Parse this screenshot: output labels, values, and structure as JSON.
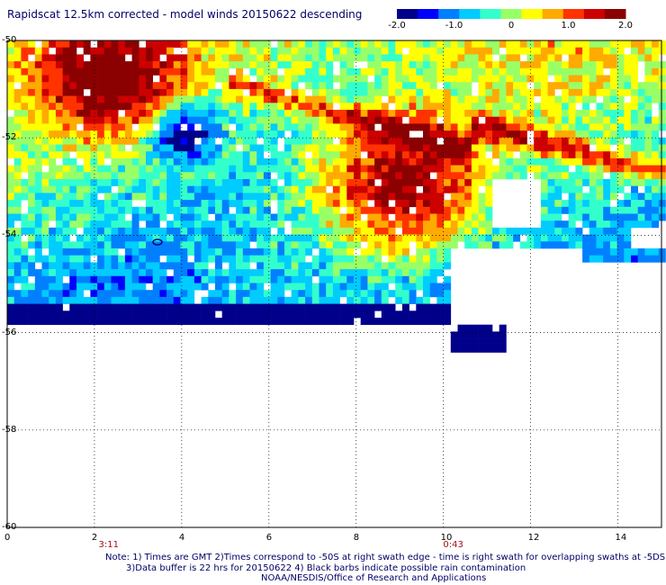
{
  "title": "Rapidscat 12.5km corrected - model winds 20150622 descending",
  "colorbar": {
    "ticks": [
      "-2.0",
      "-1.0",
      "0",
      "1.0",
      "2.0"
    ],
    "tick_values": [
      -2,
      -1,
      0,
      1,
      2
    ],
    "colors": [
      "#00008b",
      "#0000ff",
      "#0080ff",
      "#00ccff",
      "#33ffcc",
      "#99ff66",
      "#ffff00",
      "#ffaa00",
      "#ff3300",
      "#cc0000",
      "#8b0000"
    ]
  },
  "axes": {
    "y_labels": [
      "-50",
      "-52",
      "-54",
      "-56",
      "-58",
      "-60"
    ],
    "y_values": [
      -50,
      -52,
      -54,
      -56,
      -58,
      -60
    ],
    "x_labels": [
      "0",
      "2",
      "4",
      "6",
      "8",
      "10",
      "12",
      "14"
    ],
    "x_values": [
      0,
      2,
      4,
      6,
      8,
      10,
      12,
      14
    ],
    "x_range": [
      0,
      15
    ],
    "y_range": [
      -50,
      -60
    ]
  },
  "time_labels": [
    {
      "text": "3:11",
      "x": 2.3
    },
    {
      "text": "0:43",
      "x": 10.2
    }
  ],
  "notes": {
    "line1": "Note: 1) Times are GMT 2)Times correspond to -50S at right swath edge - time is right swath for overlapping swaths at -5DS",
    "line2": "3)Data buffer is 22 hrs for 20150622 4) Black barbs indicate possible rain contamination",
    "line3": "NOAA/NESDIS/Office of Research and Applications"
  },
  "chart_data": {
    "type": "heatmap",
    "title": "Rapidscat 12.5km corrected - model winds 20150622 descending",
    "x_range": [
      0,
      15
    ],
    "y_range": [
      -50,
      -60
    ],
    "value_range": [
      -2.0,
      2.0
    ],
    "grid": true
  }
}
